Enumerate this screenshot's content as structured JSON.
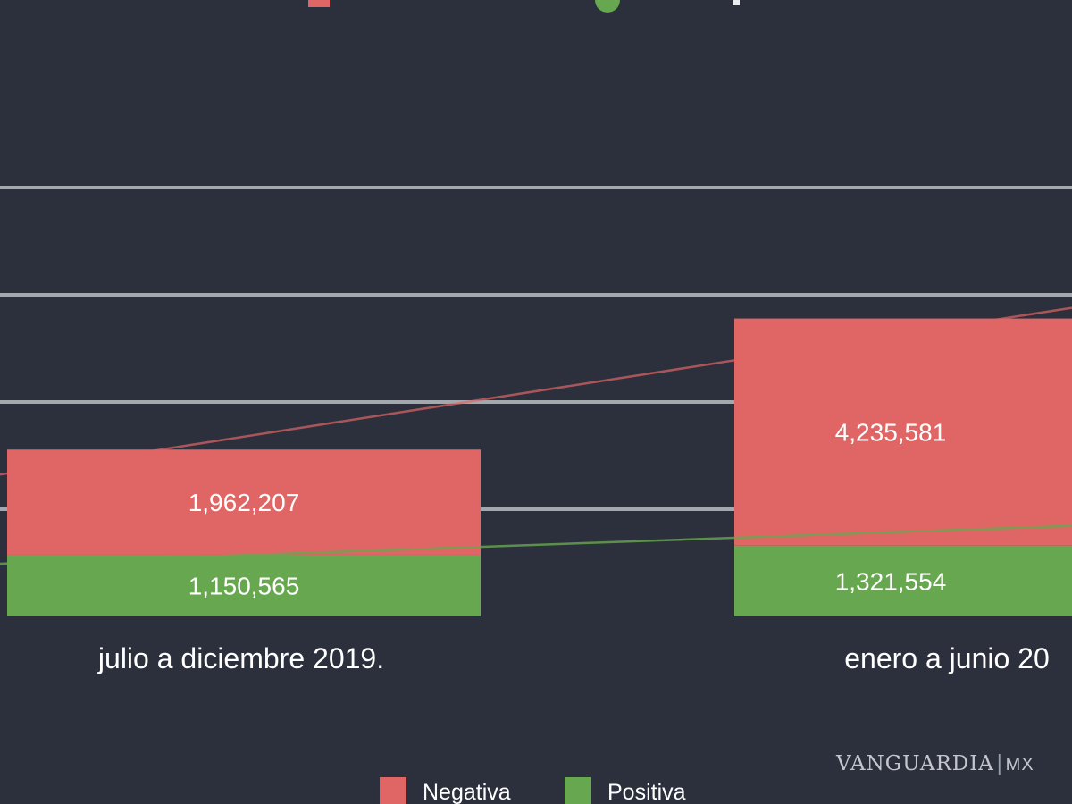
{
  "chart_data": {
    "type": "bar",
    "stacked": true,
    "categories": [
      "julio a diciembre 2019.",
      "enero a junio 20"
    ],
    "series": [
      {
        "name": "Positiva",
        "values": [
          1150565,
          1321554
        ],
        "color": "#67a74f"
      },
      {
        "name": "Negativa",
        "values": [
          1962207,
          4235581
        ],
        "color": "#e06666"
      }
    ],
    "data_labels": {
      "Positiva": [
        "1,150,565",
        "1,321,554"
      ],
      "Negativa": [
        "1,962,207",
        "4,235,581"
      ]
    },
    "trend_lines": [
      {
        "series": "Negativa",
        "color": "#e06666"
      },
      {
        "series": "Positiva",
        "color": "#67a74f"
      }
    ],
    "ylim": [
      0,
      8000000
    ],
    "grid": true,
    "legend": {
      "position": "bottom",
      "entries": [
        "Negativa",
        "Positiva"
      ]
    },
    "background": "#2b303c",
    "gridline_color": "#a3a7ae",
    "text_color": "#ffffff"
  },
  "watermark": {
    "brand": "VANGUARDIA",
    "separator": "|",
    "suffix": "MX"
  }
}
